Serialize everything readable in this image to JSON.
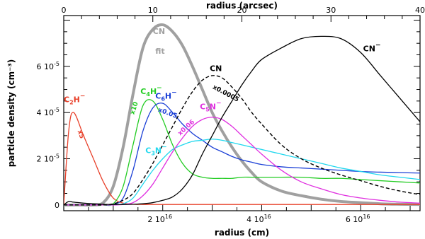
{
  "chart_data": {
    "type": "line",
    "x_unit_label": "radius (cm)",
    "top_axis_label": "radius (arcsec)",
    "y_axis_label": "particle density (cm⁻³)",
    "xlim": [
      0,
      7.2e+16
    ],
    "ylim": [
      -2.5e-06,
      8.2e-05
    ],
    "top_xlim": [
      0,
      40
    ],
    "bottom_ticks": [
      {
        "value": 2e+16,
        "mantissa": "2",
        "exp": "16"
      },
      {
        "value": 4e+16,
        "mantissa": "4",
        "exp": "16"
      },
      {
        "value": 6e+16,
        "mantissa": "6",
        "exp": "16"
      }
    ],
    "top_ticks": [
      {
        "value": 0,
        "label": "0"
      },
      {
        "value": 10,
        "label": "10"
      },
      {
        "value": 20,
        "label": "20"
      },
      {
        "value": 30,
        "label": "30"
      },
      {
        "value": 40,
        "label": "40"
      }
    ],
    "y_ticks": [
      {
        "value": 0,
        "mantissa": "0",
        "exp": ""
      },
      {
        "value": 2e-05,
        "mantissa": "2",
        "exp": "-5"
      },
      {
        "value": 4e-05,
        "mantissa": "4",
        "exp": "-5"
      },
      {
        "value": 6e-05,
        "mantissa": "6",
        "exp": "-5"
      }
    ],
    "x_values": [
      0,
      1000000000000000.0,
      2000000000000000.0,
      4000000000000000.0,
      6000000000000000.0,
      8000000000000000.0,
      1e+16,
      1.2e+16,
      1.4e+16,
      1.6e+16,
      1.8e+16,
      2e+16,
      2.2e+16,
      2.4e+16,
      2.6e+16,
      2.8e+16,
      3e+16,
      3.2e+16,
      3.4e+16,
      3.6e+16,
      3.8e+16,
      4e+16,
      4.4e+16,
      4.8e+16,
      5.2e+16,
      5.6e+16,
      6e+16,
      6.4e+16,
      6.8e+16,
      7.2e+16
    ],
    "series": [
      {
        "key": "cn_fit",
        "color": "#a0a0a0",
        "width": 4,
        "dash": "",
        "values": [
          0,
          0,
          0,
          0,
          0,
          1e-06,
          8e-06,
          2.5e-05,
          4.8e-05,
          6.8e-05,
          7.6e-05,
          7.8e-05,
          7.5e-05,
          6.9e-05,
          6e-05,
          5e-05,
          4e-05,
          3.2e-05,
          2.5e-05,
          1.9e-05,
          1.4e-05,
          1e-05,
          6e-06,
          4e-06,
          2.5e-06,
          1.5e-06,
          1e-06,
          5e-07,
          3e-07,
          2e-07
        ]
      },
      {
        "key": "c2h_minus",
        "color": "#e8402a",
        "width": 1.3,
        "dash": "",
        "values": [
          0,
          3.2e-05,
          4e-05,
          3e-05,
          2e-05,
          1e-05,
          3e-06,
          8e-07,
          3e-07,
          2e-07,
          2e-07,
          2e-07,
          2e-07,
          2e-07,
          2e-07,
          2e-07,
          2e-07,
          2e-07,
          2e-07,
          2e-07,
          2e-07,
          2e-07,
          2e-07,
          2e-07,
          2e-07,
          2e-07,
          2e-07,
          2e-07,
          2e-07,
          2e-07
        ]
      },
      {
        "key": "c4h_minus",
        "color": "#22cc22",
        "width": 1.3,
        "dash": "",
        "values": [
          0,
          0,
          0,
          0,
          0,
          0,
          5e-07,
          8e-06,
          2.6e-05,
          4.3e-05,
          4.5e-05,
          3.7e-05,
          2.6e-05,
          1.8e-05,
          1.35e-05,
          1.2e-05,
          1.15e-05,
          1.15e-05,
          1.15e-05,
          1.2e-05,
          1.2e-05,
          1.2e-05,
          1.2e-05,
          1.2e-05,
          1.15e-05,
          1.15e-05,
          1.1e-05,
          1.05e-05,
          1e-05,
          9.5e-06
        ]
      },
      {
        "key": "c6h_minus",
        "color": "#1a3fd6",
        "width": 1.3,
        "dash": "",
        "values": [
          0,
          0,
          0,
          0,
          0,
          0,
          2e-07,
          3e-06,
          1.5e-05,
          3.2e-05,
          4.2e-05,
          4.4e-05,
          4e-05,
          3.5e-05,
          3.1e-05,
          2.8e-05,
          2.5e-05,
          2.3e-05,
          2.1e-05,
          1.95e-05,
          1.85e-05,
          1.75e-05,
          1.65e-05,
          1.6e-05,
          1.55e-05,
          1.5e-05,
          1.45e-05,
          1.42e-05,
          1.4e-05,
          1.38e-05
        ]
      },
      {
        "key": "c3n_minus",
        "color": "#22d8ee",
        "width": 1.3,
        "dash": "",
        "values": [
          0,
          0,
          0,
          0,
          0,
          0,
          0,
          5e-07,
          3e-06,
          9e-06,
          1.5e-05,
          2e-05,
          2.4e-05,
          2.6e-05,
          2.75e-05,
          2.8e-05,
          2.85e-05,
          2.8e-05,
          2.7e-05,
          2.6e-05,
          2.5e-05,
          2.4e-05,
          2.2e-05,
          2e-05,
          1.8e-05,
          1.6e-05,
          1.45e-05,
          1.3e-05,
          1.2e-05,
          1.1e-05
        ]
      },
      {
        "key": "c5n_minus",
        "color": "#e030e0",
        "width": 1.3,
        "dash": "",
        "values": [
          0,
          0,
          0,
          0,
          0,
          0,
          0,
          2e-07,
          1e-06,
          4e-06,
          9e-06,
          1.6e-05,
          2.3e-05,
          2.9e-05,
          3.4e-05,
          3.7e-05,
          3.8e-05,
          3.7e-05,
          3.4e-05,
          3e-05,
          2.6e-05,
          2.2e-05,
          1.5e-05,
          1e-05,
          7e-06,
          4.5e-06,
          3e-06,
          2e-06,
          1.2e-06,
          8e-07
        ]
      },
      {
        "key": "cn",
        "color": "#000000",
        "width": 1.4,
        "dash": "5 3",
        "values": [
          0,
          0,
          0,
          0,
          0,
          0,
          5e-07,
          2e-06,
          5e-06,
          1.1e-05,
          1.8e-05,
          2.6e-05,
          3.4e-05,
          4.2e-05,
          4.9e-05,
          5.4e-05,
          5.6e-05,
          5.5e-05,
          5.1e-05,
          4.6e-05,
          4e-05,
          3.5e-05,
          2.6e-05,
          2e-05,
          1.6e-05,
          1.3e-05,
          1.05e-05,
          8e-06,
          6e-06,
          4.5e-06
        ]
      },
      {
        "key": "cn_minus",
        "color": "#000000",
        "width": 1.3,
        "dash": "",
        "values": [
          0,
          1.5e-06,
          1.2e-06,
          8e-07,
          5e-07,
          3e-07,
          2e-07,
          2e-07,
          3e-07,
          5e-07,
          1e-06,
          2e-06,
          3.5e-06,
          7e-06,
          1.3e-05,
          2.2e-05,
          3e-05,
          3.8e-05,
          4.5e-05,
          5.2e-05,
          5.8e-05,
          6.3e-05,
          6.8e-05,
          7.2e-05,
          7.3e-05,
          7.2e-05,
          6.6e-05,
          5.6e-05,
          4.6e-05,
          3.6e-05
        ]
      }
    ],
    "annotations": [
      {
        "key": "a_c2h",
        "color": "#e8402a",
        "name": "C",
        "sub": "2",
        "tail": "H",
        "sup": "−",
        "x": 0.0,
        "y": 4.45e-05
      },
      {
        "key": "a_c4h",
        "color": "#22cc22",
        "name": "C",
        "sub": "4",
        "tail": "H",
        "sup": "−",
        "x": 1.55e+16,
        "y": 4.8e-05
      },
      {
        "key": "a_c6h",
        "color": "#1a3fd6",
        "name": "C",
        "sub": "6",
        "tail": "H",
        "sup": "−",
        "x": 1.85e+16,
        "y": 4.6e-05
      },
      {
        "key": "a_c5n",
        "color": "#e030e0",
        "name": "C",
        "sub": "5",
        "tail": "N",
        "sup": "−",
        "x": 2.75e+16,
        "y": 4.15e-05
      },
      {
        "key": "a_c3n",
        "color": "#22d8ee",
        "name": "C",
        "sub": "3",
        "tail": "N",
        "sup": "−",
        "x": 1.65e+16,
        "y": 2.25e-05
      },
      {
        "key": "a_cnfit",
        "color": "#a0a0a0",
        "name": "CN",
        "sub": "",
        "tail": "",
        "sup": "−",
        "x": 1.8e+16,
        "y": 7.4e-05
      },
      {
        "key": "a_cn",
        "color": "#000000",
        "name": "CN",
        "sub": "",
        "tail": "",
        "sup": "",
        "x": 2.95e+16,
        "y": 5.8e-05
      },
      {
        "key": "a_cnm",
        "color": "#000000",
        "name": "CN",
        "sub": "",
        "tail": "",
        "sup": "−",
        "x": 6.05e+16,
        "y": 6.65e-05
      }
    ],
    "fit_label": {
      "text": "fit",
      "color": "#a0a0a0",
      "x": 1.85e+16,
      "y": 6.55e-05
    },
    "multipliers": [
      {
        "key": "m_c2h",
        "text": "x5",
        "color": "#e8402a",
        "x": 2800000000000000.0,
        "y": 3.2e-05,
        "angle": 70
      },
      {
        "key": "m_c4h",
        "text": "x10",
        "color": "#22cc22",
        "x": 1.42e+16,
        "y": 3.9e-05,
        "angle": -72
      },
      {
        "key": "m_c6h",
        "text": "x0.05",
        "color": "#1a3fd6",
        "x": 1.9e+16,
        "y": 4.05e-05,
        "angle": 20
      },
      {
        "key": "m_c5n",
        "text": "x0.06",
        "color": "#e030e0",
        "x": 2.35e+16,
        "y": 3e-05,
        "angle": -42
      },
      {
        "key": "m_cn",
        "text": "x0.0005",
        "color": "#000000",
        "x": 3e+16,
        "y": 5.05e-05,
        "angle": 28
      }
    ]
  }
}
